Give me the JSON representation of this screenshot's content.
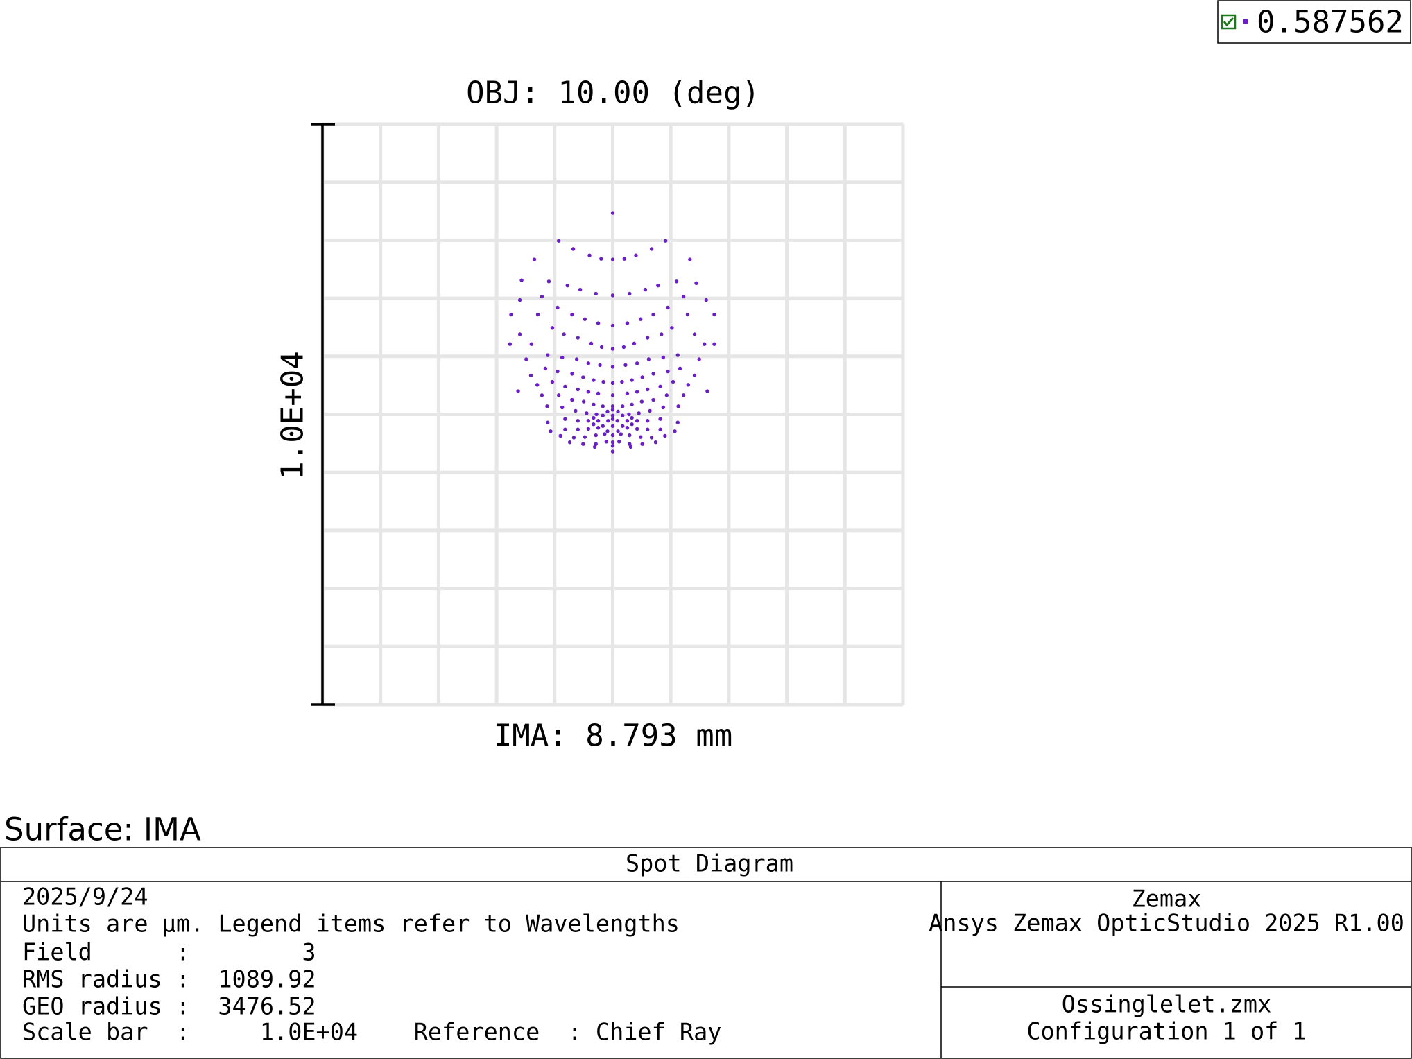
{
  "chart_data": {
    "type": "scatter",
    "title": "OBJ: 10.00 (deg)",
    "x_label": "IMA: 8.793 mm",
    "scale_bar": {
      "value": 10000,
      "label": "1.0E+04"
    },
    "xlim": [
      -5000,
      5000
    ],
    "ylim": [
      -5000,
      5000
    ],
    "xticks": [
      -5000,
      -4000,
      -3000,
      -2000,
      -1000,
      0,
      1000,
      2000,
      3000,
      4000,
      5000
    ],
    "yticks": [
      -5000,
      -4000,
      -3000,
      -2000,
      -1000,
      0,
      1000,
      2000,
      3000,
      4000,
      5000
    ],
    "grid": true,
    "legend": "top-right",
    "x": [
      0,
      -930,
      910,
      -680,
      -400,
      -200,
      0,
      200,
      400,
      670,
      -1350,
      1330,
      -1100,
      -780,
      -560,
      -290,
      0,
      290,
      560,
      780,
      1100,
      -1570,
      1440,
      -1600,
      -1220,
      1610,
      1220,
      -1750,
      -1290,
      -950,
      -700,
      -480,
      -250,
      0,
      250,
      480,
      700,
      950,
      1290,
      1750,
      -1040,
      1020,
      -1770,
      -1600,
      -1400,
      -840,
      -600,
      -370,
      -190,
      0,
      190,
      370,
      600,
      840,
      1410,
      1580,
      1750,
      -1490,
      -1120,
      -870,
      -620,
      -420,
      -220,
      0,
      220,
      420,
      620,
      870,
      1120,
      1490,
      -1410,
      -1160,
      -950,
      -700,
      -510,
      -330,
      -160,
      0,
      160,
      330,
      510,
      700,
      950,
      1160,
      1410,
      -1630,
      -1300,
      -1040,
      -820,
      -600,
      -420,
      -250,
      0,
      250,
      420,
      600,
      820,
      1040,
      1300,
      1630,
      -1220,
      -930,
      -700,
      -500,
      -330,
      -170,
      0,
      170,
      330,
      500,
      700,
      930,
      1220,
      -1130,
      -870,
      -640,
      -450,
      -280,
      280,
      450,
      640,
      870,
      1130,
      -170,
      0,
      170,
      -250,
      -80,
      80,
      250,
      -170,
      0,
      170,
      0,
      -330,
      330,
      -90,
      90,
      -330,
      330,
      0,
      -90,
      90,
      -1120,
      -820,
      -600,
      -420,
      420,
      600,
      820,
      1120,
      -1070,
      -820,
      -600,
      -420,
      -250,
      250,
      420,
      600,
      820,
      1070,
      -900,
      -670,
      -480,
      -290,
      -140,
      0,
      140,
      290,
      480,
      670,
      900,
      -740,
      -510,
      -290,
      -110,
      0,
      110,
      290,
      510,
      740,
      -310,
      0,
      310,
      0
    ],
    "series": [
      {
        "name": "0.587562",
        "color": "#6a1fc2",
        "values": [
          3470,
          2990,
          2990,
          2850,
          2740,
          2680,
          2670,
          2680,
          2740,
          2850,
          2670,
          2670,
          2290,
          2220,
          2150,
          2080,
          2050,
          2080,
          2150,
          2220,
          2290,
          2310,
          2260,
          1970,
          2030,
          1970,
          2030,
          1720,
          1720,
          1840,
          1720,
          1640,
          1570,
          1530,
          1570,
          1640,
          1720,
          1840,
          1720,
          1720,
          1490,
          1490,
          1210,
          1380,
          1210,
          1380,
          1320,
          1220,
          1160,
          1130,
          1160,
          1220,
          1320,
          1380,
          1380,
          1210,
          1210,
          950,
          1020,
          980,
          950,
          880,
          850,
          820,
          850,
          880,
          950,
          980,
          1020,
          950,
          670,
          790,
          740,
          700,
          640,
          590,
          560,
          540,
          560,
          590,
          640,
          700,
          740,
          790,
          670,
          400,
          510,
          560,
          480,
          430,
          390,
          360,
          330,
          360,
          390,
          430,
          480,
          560,
          510,
          400,
          330,
          330,
          250,
          220,
          170,
          140,
          140,
          140,
          170,
          220,
          250,
          330,
          330,
          140,
          120,
          60,
          20,
          0,
          0,
          20,
          60,
          120,
          140,
          -20,
          -20,
          -20,
          -110,
          -110,
          -110,
          -110,
          -200,
          -200,
          -200,
          -80,
          -60,
          -60,
          50,
          50,
          -170,
          -170,
          80,
          -290,
          -290,
          -140,
          -80,
          -110,
          -110,
          -110,
          -110,
          -80,
          -140,
          -290,
          -260,
          -260,
          -250,
          -230,
          -230,
          -250,
          -260,
          -260,
          -290,
          -370,
          -400,
          -390,
          -360,
          -340,
          -360,
          -340,
          -360,
          -390,
          -400,
          -370,
          -480,
          -510,
          -510,
          -470,
          -480,
          -470,
          -510,
          -510,
          -480,
          -560,
          -540,
          -560,
          -640
        ]
      }
    ]
  },
  "surface_label": "Surface: IMA",
  "footer": {
    "title": "Spot Diagram",
    "lines": [
      "2025/9/24",
      "Units are µm. Legend items refer to Wavelengths",
      "Field      :        3",
      "RMS radius :  1089.92",
      "GEO radius :  3476.52",
      "Scale bar  :     1.0E+04    Reference  : Chief Ray"
    ],
    "right_top": [
      "Zemax",
      "Ansys Zemax OpticStudio 2025 R1.00"
    ],
    "right_bottom": [
      "Ossinglelet.zmx",
      "Configuration 1 of 1"
    ]
  }
}
